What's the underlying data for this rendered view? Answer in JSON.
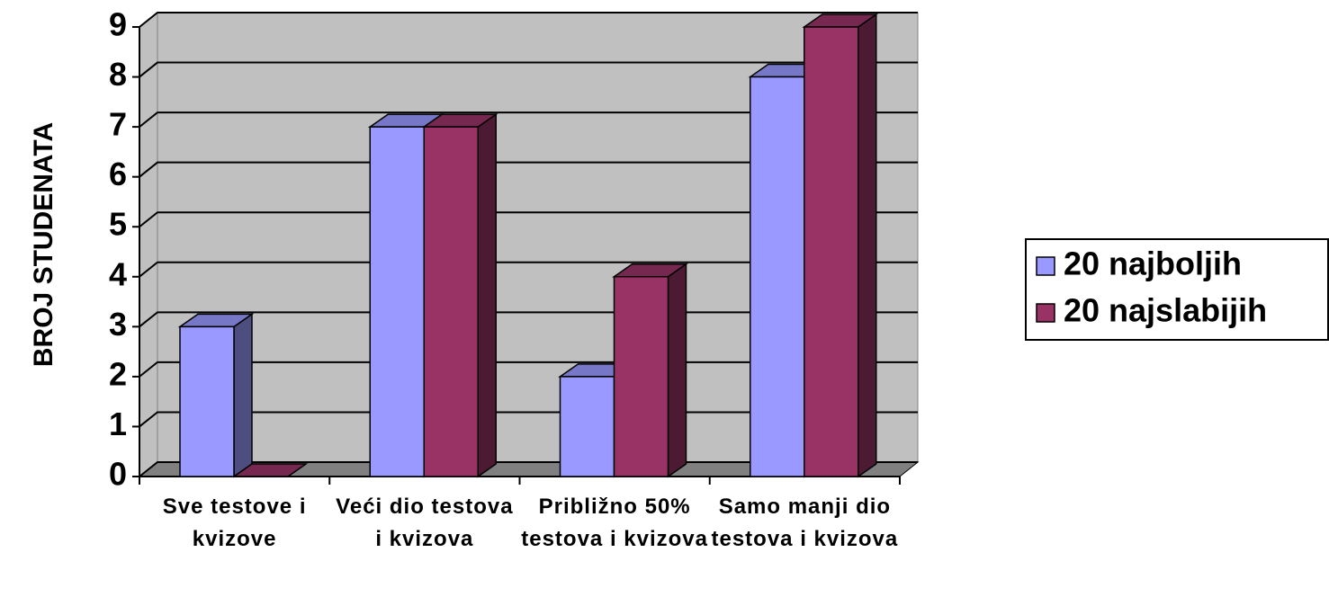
{
  "chart_data": {
    "type": "bar3d",
    "ylabel": "BROJ STUDENATA",
    "categories": [
      "Sve testove i kvizove",
      "Veći dio testova i kvizova",
      "Približno 50% testova i kvizova",
      "Samo manji dio testova i kvizova"
    ],
    "series": [
      {
        "name": "20 najboljih",
        "color": "#9999ff",
        "values": [
          3,
          7,
          2,
          8
        ]
      },
      {
        "name": "20 najslabijih",
        "color": "#993366",
        "values": [
          0,
          7,
          4,
          9
        ]
      }
    ],
    "ylim": [
      0,
      9
    ],
    "yticks": [
      0,
      1,
      2,
      3,
      4,
      5,
      6,
      7,
      8,
      9
    ],
    "grid": true,
    "legend": "right"
  }
}
